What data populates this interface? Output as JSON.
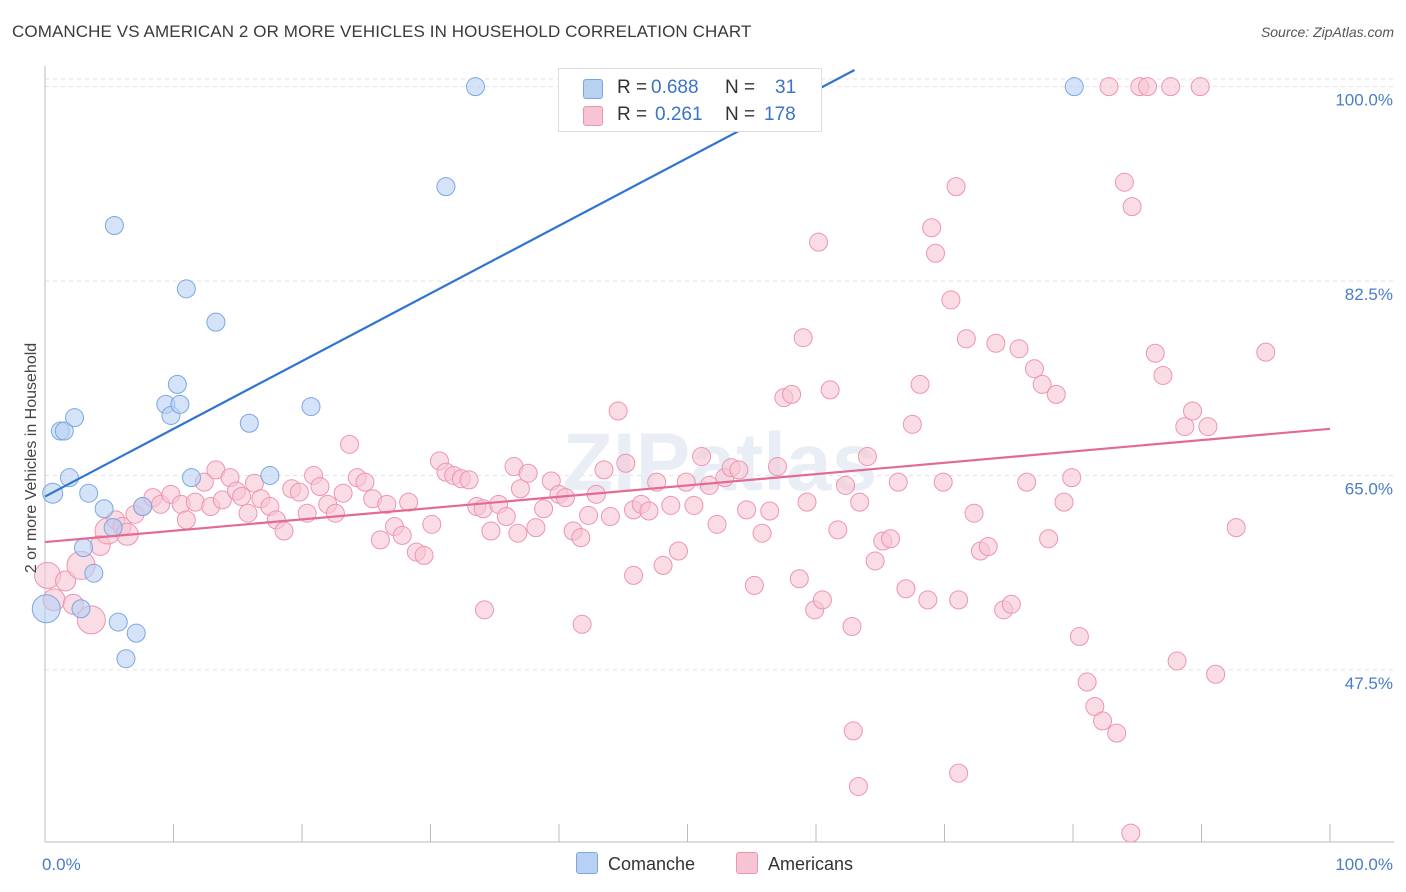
{
  "header": {
    "title": "COMANCHE VS AMERICAN 2 OR MORE VEHICLES IN HOUSEHOLD CORRELATION CHART",
    "source": "Source: ZipAtlas.com"
  },
  "colors": {
    "comanche_fill": "#b8d1f3",
    "comanche_stroke": "#7aa7e3",
    "comanche_line": "#2f74d0",
    "americans_fill": "#f7c4d4",
    "americans_stroke": "#ee94b3",
    "americans_line": "#e36a93",
    "tick_text": "#4a7cc9",
    "grid": "#e3e3e3"
  },
  "legend": {
    "rows": [
      {
        "r_label": "R =",
        "r_value": "0.688",
        "n_label": "N =",
        "n_value": "31"
      },
      {
        "r_label": "R =",
        "r_value": "0.261",
        "n_label": "N =",
        "n_value": "178"
      }
    ],
    "bottom": [
      "Comanche",
      "Americans"
    ]
  },
  "chart_data": {
    "type": "scatter",
    "ylabel": "2 or more Vehicles in Household",
    "xlabel": "",
    "x_tick_labels": [
      "0.0%",
      "100.0%"
    ],
    "y_tick_labels": [
      "100.0%",
      "82.5%",
      "65.0%",
      "47.5%"
    ],
    "y_ticks": [
      100.0,
      82.5,
      65.0,
      47.5
    ],
    "xlim": [
      0,
      100
    ],
    "ylim": [
      32.0,
      101.5
    ],
    "watermark": "ZIPatlas",
    "series": [
      {
        "name": "Comanche",
        "trend": {
          "x0": 0,
          "y0": 63.1,
          "x1": 63.0,
          "y1": 101.5
        },
        "points": [
          [
            0.1,
            53.0,
            14
          ],
          [
            0.6,
            63.4,
            10
          ],
          [
            1.2,
            69.0,
            9
          ],
          [
            1.5,
            69.0,
            9
          ],
          [
            1.9,
            64.8,
            9
          ],
          [
            2.3,
            70.2,
            9
          ],
          [
            2.8,
            53.0,
            9
          ],
          [
            3.0,
            58.5,
            9
          ],
          [
            3.4,
            63.4,
            9
          ],
          [
            3.8,
            56.2,
            9
          ],
          [
            4.6,
            62.0,
            9
          ],
          [
            5.3,
            60.3,
            9
          ],
          [
            5.4,
            87.5,
            9
          ],
          [
            5.7,
            51.8,
            9
          ],
          [
            6.3,
            48.5,
            9
          ],
          [
            7.1,
            50.8,
            9
          ],
          [
            7.6,
            62.2,
            9
          ],
          [
            9.4,
            71.4,
            9
          ],
          [
            9.8,
            70.4,
            9
          ],
          [
            10.3,
            73.2,
            9
          ],
          [
            10.5,
            71.4,
            9
          ],
          [
            11.0,
            81.8,
            9
          ],
          [
            11.4,
            64.8,
            9
          ],
          [
            13.3,
            78.8,
            9
          ],
          [
            15.9,
            69.7,
            9
          ],
          [
            17.5,
            65.0,
            9
          ],
          [
            20.7,
            71.2,
            9
          ],
          [
            31.2,
            91.0,
            9
          ],
          [
            33.5,
            100.0,
            9
          ],
          [
            80.1,
            100.0,
            9
          ]
        ]
      },
      {
        "name": "Americans",
        "trend": {
          "x0": 0,
          "y0": 59.0,
          "x1": 100,
          "y1": 69.2
        },
        "points": [
          [
            0.2,
            56.0,
            13
          ],
          [
            0.7,
            53.8,
            11
          ],
          [
            1.6,
            55.5,
            10
          ],
          [
            2.2,
            53.4,
            10
          ],
          [
            2.8,
            56.9,
            14
          ],
          [
            3.6,
            52.0,
            14
          ],
          [
            4.3,
            58.7,
            10
          ],
          [
            4.9,
            60.0,
            13
          ],
          [
            5.5,
            61.0,
            9
          ],
          [
            6.0,
            60.4,
            9
          ],
          [
            6.4,
            59.7,
            11
          ],
          [
            7.0,
            61.5,
            9
          ],
          [
            7.6,
            62.2,
            9
          ],
          [
            8.4,
            63.0,
            9
          ],
          [
            9.0,
            62.4,
            9
          ],
          [
            9.8,
            63.3,
            9
          ],
          [
            10.6,
            62.4,
            9
          ],
          [
            11.0,
            61.0,
            9
          ],
          [
            11.7,
            62.6,
            9
          ],
          [
            12.4,
            64.4,
            9
          ],
          [
            12.9,
            62.2,
            9
          ],
          [
            13.3,
            65.5,
            9
          ],
          [
            13.8,
            62.8,
            9
          ],
          [
            14.4,
            64.8,
            9
          ],
          [
            14.9,
            63.6,
            9
          ],
          [
            15.3,
            63.1,
            9
          ],
          [
            15.8,
            61.6,
            9
          ],
          [
            16.3,
            64.3,
            9
          ],
          [
            16.8,
            62.9,
            9
          ],
          [
            17.5,
            62.2,
            9
          ],
          [
            18.0,
            61.0,
            9
          ],
          [
            18.6,
            60.0,
            9
          ],
          [
            19.2,
            63.8,
            9
          ],
          [
            19.8,
            63.5,
            9
          ],
          [
            20.4,
            61.6,
            9
          ],
          [
            20.9,
            65.0,
            9
          ],
          [
            21.4,
            64.0,
            9
          ],
          [
            22.0,
            62.4,
            9
          ],
          [
            22.6,
            61.6,
            9
          ],
          [
            23.2,
            63.4,
            9
          ],
          [
            23.7,
            67.8,
            9
          ],
          [
            24.3,
            64.8,
            9
          ],
          [
            24.9,
            64.4,
            9
          ],
          [
            25.5,
            62.9,
            9
          ],
          [
            26.1,
            59.2,
            9
          ],
          [
            26.6,
            62.4,
            9
          ],
          [
            27.2,
            60.4,
            9
          ],
          [
            27.8,
            59.6,
            9
          ],
          [
            28.3,
            62.6,
            9
          ],
          [
            28.9,
            58.1,
            9
          ],
          [
            29.5,
            57.8,
            9
          ],
          [
            30.1,
            60.6,
            9
          ],
          [
            30.7,
            66.3,
            9
          ],
          [
            31.2,
            65.3,
            9
          ],
          [
            31.8,
            65.0,
            9
          ],
          [
            32.4,
            64.7,
            9
          ],
          [
            33.0,
            64.6,
            9
          ],
          [
            33.6,
            62.2,
            9
          ],
          [
            34.1,
            62.0,
            9
          ],
          [
            34.7,
            60.0,
            9
          ],
          [
            35.3,
            62.4,
            9
          ],
          [
            35.9,
            61.3,
            9
          ],
          [
            36.5,
            65.8,
            9
          ],
          [
            37.0,
            63.8,
            9
          ],
          [
            37.6,
            65.2,
            9
          ],
          [
            38.2,
            60.3,
            9
          ],
          [
            38.8,
            62.0,
            9
          ],
          [
            39.4,
            64.5,
            9
          ],
          [
            40.0,
            63.3,
            9
          ],
          [
            40.5,
            63.0,
            9
          ],
          [
            41.1,
            60.0,
            9
          ],
          [
            41.7,
            59.4,
            9
          ],
          [
            42.3,
            61.4,
            9
          ],
          [
            42.9,
            63.3,
            9
          ],
          [
            43.5,
            65.5,
            9
          ],
          [
            44.0,
            61.3,
            9
          ],
          [
            44.6,
            70.8,
            9
          ],
          [
            45.2,
            66.1,
            9
          ],
          [
            45.8,
            61.9,
            9
          ],
          [
            46.4,
            62.4,
            9
          ],
          [
            47.0,
            61.8,
            9
          ],
          [
            47.6,
            64.4,
            9
          ],
          [
            48.1,
            56.9,
            9
          ],
          [
            48.7,
            62.3,
            9
          ],
          [
            49.3,
            58.2,
            9
          ],
          [
            49.9,
            64.4,
            9
          ],
          [
            50.5,
            62.3,
            9
          ],
          [
            51.1,
            66.7,
            9
          ],
          [
            51.7,
            64.1,
            9
          ],
          [
            52.3,
            60.6,
            9
          ],
          [
            52.9,
            64.8,
            9
          ],
          [
            53.4,
            65.7,
            9
          ],
          [
            54.0,
            65.5,
            9
          ],
          [
            54.6,
            61.9,
            9
          ],
          [
            55.2,
            55.1,
            9
          ],
          [
            55.8,
            59.8,
            9
          ],
          [
            56.4,
            61.8,
            9
          ],
          [
            57.0,
            65.8,
            9
          ],
          [
            57.5,
            72.0,
            9
          ],
          [
            58.1,
            72.3,
            9
          ],
          [
            58.7,
            55.7,
            9
          ],
          [
            59.3,
            62.6,
            9
          ],
          [
            59.9,
            52.9,
            9
          ],
          [
            60.5,
            53.8,
            9
          ],
          [
            61.1,
            72.7,
            9
          ],
          [
            61.7,
            60.1,
            9
          ],
          [
            62.3,
            64.1,
            9
          ],
          [
            62.8,
            51.4,
            9
          ],
          [
            63.4,
            62.6,
            9
          ],
          [
            64.0,
            66.7,
            9
          ],
          [
            64.6,
            57.3,
            9
          ],
          [
            65.2,
            59.1,
            9
          ],
          [
            65.8,
            59.3,
            9
          ],
          [
            66.4,
            64.4,
            9
          ],
          [
            67.0,
            54.8,
            9
          ],
          [
            67.5,
            69.6,
            9
          ],
          [
            68.1,
            73.2,
            9
          ],
          [
            68.7,
            53.8,
            9
          ],
          [
            69.3,
            85.0,
            9
          ],
          [
            69.9,
            64.4,
            9
          ],
          [
            70.5,
            80.8,
            9
          ],
          [
            71.1,
            53.8,
            9
          ],
          [
            71.7,
            77.3,
            9
          ],
          [
            72.3,
            61.6,
            9
          ],
          [
            72.8,
            58.2,
            9
          ],
          [
            73.4,
            58.6,
            9
          ],
          [
            74.0,
            76.9,
            9
          ],
          [
            74.6,
            52.9,
            9
          ],
          [
            75.2,
            53.4,
            9
          ],
          [
            75.8,
            76.4,
            9
          ],
          [
            76.4,
            64.4,
            9
          ],
          [
            77.0,
            74.6,
            9
          ],
          [
            77.6,
            73.2,
            9
          ],
          [
            78.1,
            59.3,
            9
          ],
          [
            78.7,
            72.3,
            9
          ],
          [
            79.3,
            62.6,
            9
          ],
          [
            79.9,
            64.8,
            9
          ],
          [
            80.5,
            50.5,
            9
          ],
          [
            81.1,
            46.4,
            9
          ],
          [
            81.7,
            44.2,
            9
          ],
          [
            82.3,
            42.9,
            9
          ],
          [
            82.8,
            100.0,
            9
          ],
          [
            83.4,
            41.8,
            9
          ],
          [
            84.0,
            91.4,
            9
          ],
          [
            84.6,
            89.2,
            9
          ],
          [
            85.2,
            100.0,
            9
          ],
          [
            85.8,
            100.0,
            9
          ],
          [
            86.4,
            76.0,
            9
          ],
          [
            87.0,
            74.0,
            9
          ],
          [
            87.6,
            100.0,
            9
          ],
          [
            88.1,
            48.3,
            9
          ],
          [
            88.7,
            69.4,
            9
          ],
          [
            89.3,
            70.8,
            9
          ],
          [
            89.9,
            100.0,
            9
          ],
          [
            90.5,
            69.4,
            9
          ],
          [
            91.1,
            47.1,
            9
          ],
          [
            92.7,
            60.3,
            9
          ],
          [
            95.0,
            76.1,
            9
          ],
          [
            59.0,
            77.4,
            9
          ],
          [
            60.2,
            86.0,
            9
          ],
          [
            69.0,
            87.3,
            9
          ],
          [
            70.9,
            91.0,
            9
          ],
          [
            62.9,
            42.0,
            9
          ],
          [
            63.3,
            37.0,
            9
          ],
          [
            71.1,
            38.2,
            9
          ],
          [
            84.5,
            32.8,
            9
          ],
          [
            34.2,
            52.9,
            9
          ],
          [
            41.8,
            51.6,
            9
          ],
          [
            45.8,
            56.0,
            9
          ],
          [
            36.8,
            59.8,
            9
          ]
        ]
      }
    ]
  }
}
